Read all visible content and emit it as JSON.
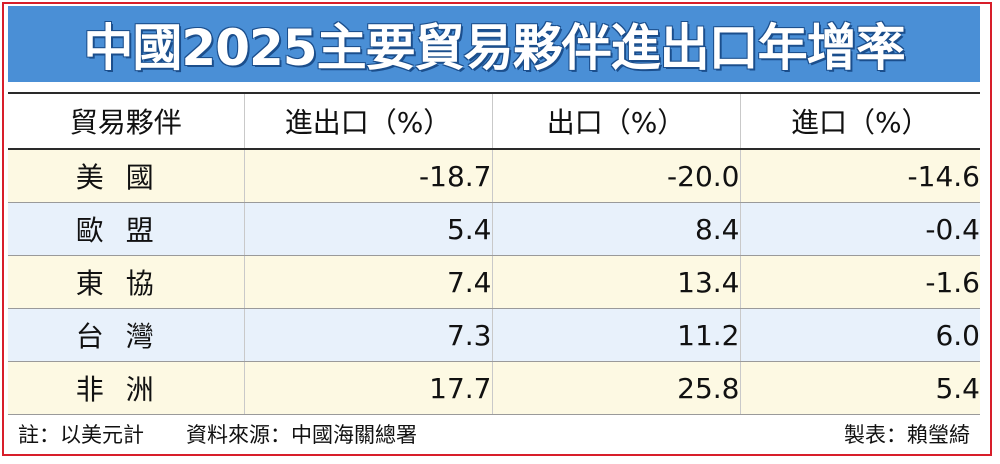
{
  "title": "中國2025主要貿易夥伴進出口年增率",
  "table": {
    "headers": [
      "貿易夥伴",
      "進出口（%）",
      "出口（%）",
      "進口（%）"
    ],
    "rows": [
      {
        "partner": "美國",
        "total": "-18.7",
        "export": "-20.0",
        "import": "-14.6"
      },
      {
        "partner": "歐盟",
        "total": "5.4",
        "export": "8.4",
        "import": "-0.4"
      },
      {
        "partner": "東協",
        "total": "7.4",
        "export": "13.4",
        "import": "-1.6"
      },
      {
        "partner": "台灣",
        "total": "7.3",
        "export": "11.2",
        "import": "6.0"
      },
      {
        "partner": "非洲",
        "total": "17.7",
        "export": "25.8",
        "import": "5.4"
      }
    ]
  },
  "footer": {
    "note": "註：以美元計",
    "source": "資料來源：中國海關總署",
    "credit": "製表：賴瑩綺"
  },
  "colors": {
    "title_bg": "#4a8fd6",
    "border": "#d81e2a",
    "row_odd": "#fdf9e3",
    "row_even": "#e8f1fb"
  }
}
